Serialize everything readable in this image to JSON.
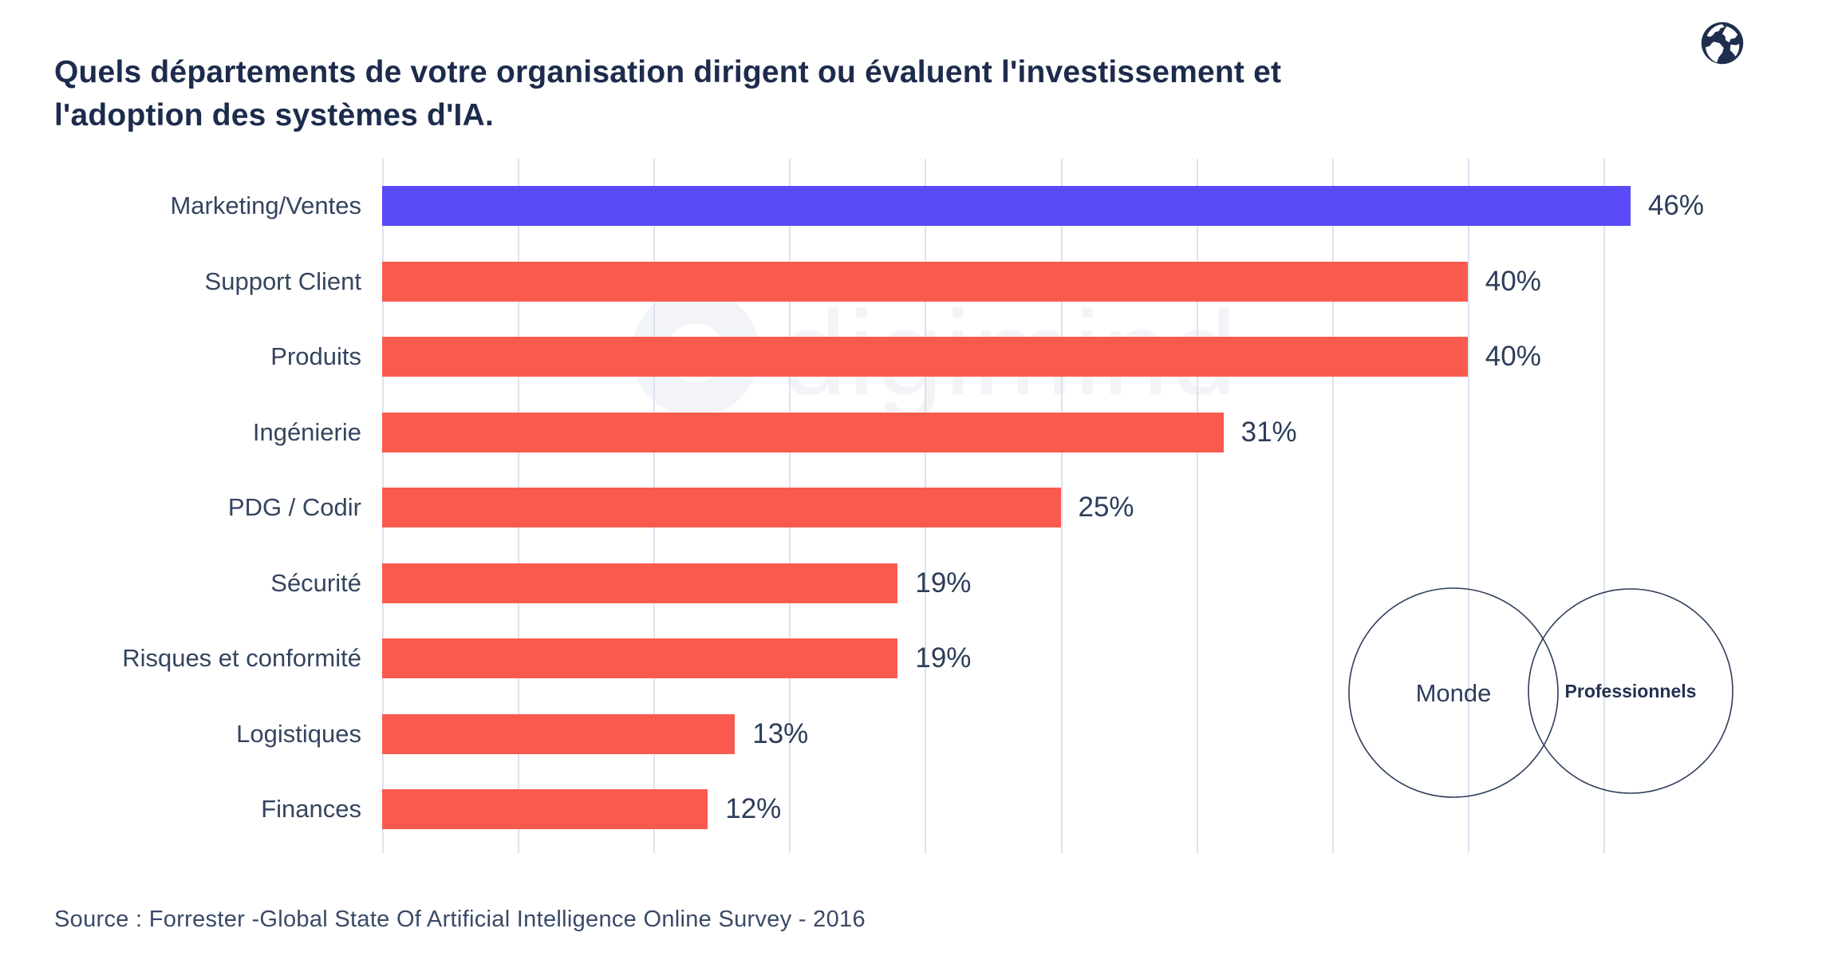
{
  "header": {
    "title": "Quels départements de votre organisation dirigent ou évaluent l'investissement et l'adoption des systèmes d'IA.",
    "logo_icon": "globe-icon"
  },
  "watermark": {
    "text": "digimind"
  },
  "chart_data": {
    "type": "bar",
    "orientation": "horizontal",
    "title": "Quels départements de votre organisation dirigent ou évaluent l'investissement et l'adoption des systèmes d'IA.",
    "categories": [
      "Marketing/Ventes",
      "Support Client",
      "Produits",
      "Ingénierie",
      "PDG / Codir",
      "Sécurité",
      "Risques et conformité",
      "Logistiques",
      "Finances"
    ],
    "values": [
      46,
      40,
      40,
      31,
      25,
      19,
      19,
      13,
      12
    ],
    "value_labels": [
      "46%",
      "40%",
      "40%",
      "31%",
      "25%",
      "19%",
      "19%",
      "13%",
      "12%"
    ],
    "value_suffix": "%",
    "highlight_index": 0,
    "colors": {
      "highlight_bar": "#5a4af7",
      "default_bar": "#fa5a4e",
      "gridline": "#dbe3f0",
      "label_text": "#35455f",
      "value_text": "#2d3d5a",
      "title_text": "#1d2b4c"
    },
    "xlim": [
      0,
      45
    ],
    "grid_step_pct": 5,
    "grid": true,
    "legend_position": "none"
  },
  "venn": {
    "circle1_label": "Monde",
    "circle2_label": "Professionnels"
  },
  "footer": {
    "source": "Source :  Forrester -Global State Of Artificial Intelligence Online Survey  - 2016"
  }
}
